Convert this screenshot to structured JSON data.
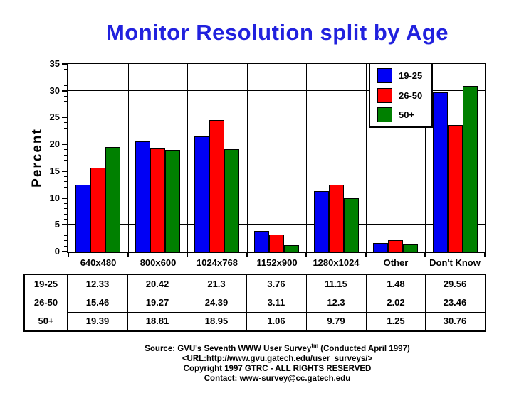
{
  "title": "Monitor Resolution split by Age",
  "colors": {
    "title_blue": "#2121de",
    "series_blue": "#0000f5",
    "series_red": "#ff0000",
    "series_green": "#008000",
    "axis_black": "#000000",
    "background": "#ffffff"
  },
  "chart_data": {
    "type": "bar",
    "title": "Monitor Resolution split by Age",
    "xlabel": "",
    "ylabel": "Percent",
    "ylim": [
      0,
      35
    ],
    "ytick_step": 5,
    "ytick_minor_step": 1,
    "grid": "horizontal gridlines every 5, vertical separators between categories",
    "legend_position": "top-right inside plot",
    "categories": [
      "640x480",
      "800x600",
      "1024x768",
      "1152x900",
      "1280x1024",
      "Other",
      "Don't Know"
    ],
    "series": [
      {
        "name": "19-25",
        "color": "#0000f5",
        "values": [
          12.33,
          20.42,
          21.3,
          3.76,
          11.15,
          1.48,
          29.56
        ]
      },
      {
        "name": "26-50",
        "color": "#ff0000",
        "values": [
          15.46,
          19.27,
          24.39,
          3.11,
          12.3,
          2.02,
          23.46
        ]
      },
      {
        "name": "50+",
        "color": "#008000",
        "values": [
          19.39,
          18.81,
          18.95,
          1.06,
          9.79,
          1.25,
          30.76
        ]
      }
    ]
  },
  "table": {
    "row_headers": [
      "19-25",
      "26-50",
      "50+"
    ],
    "column_headers": [
      "640x480",
      "800x600",
      "1024x768",
      "1152x900",
      "1280x1024",
      "Other",
      "Don't Know"
    ],
    "rows": [
      [
        "12.33",
        "20.42",
        "21.3",
        "3.76",
        "11.15",
        "1.48",
        "29.56"
      ],
      [
        "15.46",
        "19.27",
        "24.39",
        "3.11",
        "12.3",
        "2.02",
        "23.46"
      ],
      [
        "19.39",
        "18.81",
        "18.95",
        "1.06",
        "9.79",
        "1.25",
        "30.76"
      ]
    ]
  },
  "footer": {
    "line1_prefix": "Source: GVU's Seventh WWW User Survey",
    "line1_sup": "tm",
    "line1_suffix": " (Conducted April 1997)",
    "line2": "<URL:http://www.gvu.gatech.edu/user_surveys/>",
    "line3": "Copyright 1997 GTRC - ALL RIGHTS RESERVED",
    "line4": "Contact: www-survey@cc.gatech.edu"
  }
}
